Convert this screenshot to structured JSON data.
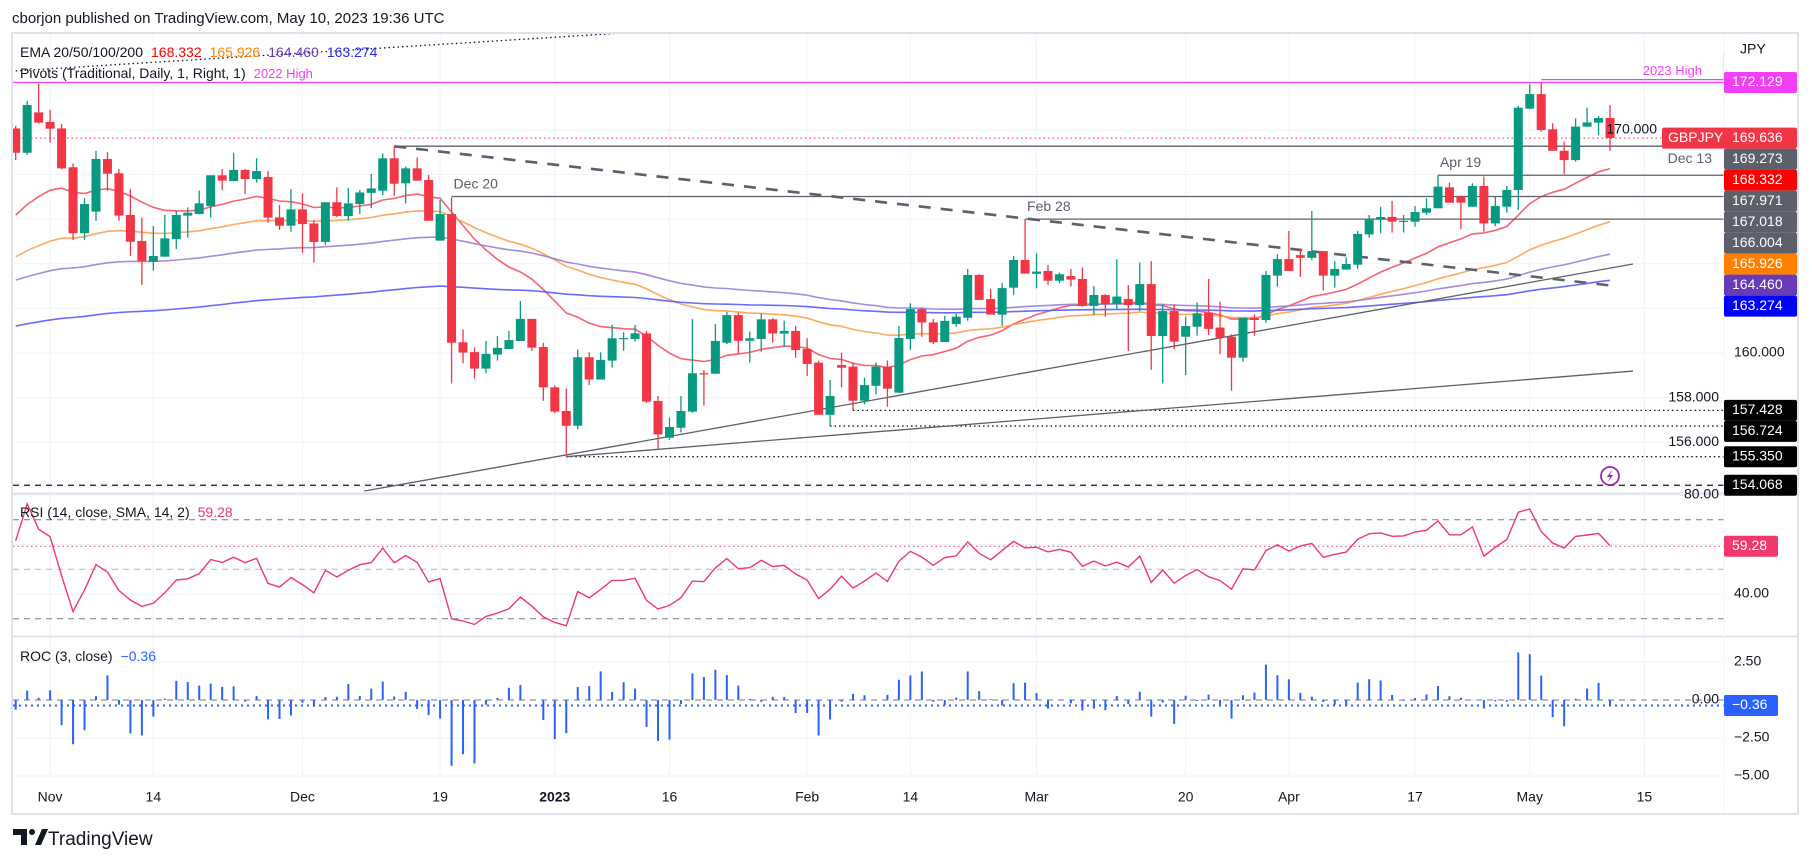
{
  "header": {
    "published": "cborjon published on TradingView.com, May 10, 2023 19:36 UTC"
  },
  "legend": {
    "ema_title": "EMA 20/50/100/200",
    "ema_values": [
      "168.332",
      "165.926",
      "164.460",
      "163.274"
    ],
    "pivots_title": "Pivots (Traditional, Daily, 1, Right, 1)",
    "pivot_2022_high": "2022 High",
    "rsi_title": "RSI (14, close, SMA, 14, 2)",
    "rsi_value": "59.28",
    "roc_title": "ROC (3, close)",
    "roc_value": "−0.36"
  },
  "colors": {
    "up": "#089981",
    "down": "#f23645",
    "ema20": "#f7525f",
    "ema50": "#ffa04d",
    "ema100": "#9c7fd6",
    "ema200": "#5b5bff",
    "ema20_label": "#ff0000",
    "ema50_label": "#ff7f00",
    "ema100_label": "#673ab7",
    "ema200_label": "#0000ff",
    "high_2023": "#f23ff7",
    "rsi": "#f0386b",
    "roc": "#2962ff",
    "level_gray": "#5d606b"
  },
  "symbol": {
    "ticker": "GBPJPY",
    "price": "169.636",
    "currency": "JPY"
  },
  "brand": "TradingView",
  "icons": {
    "alert": "lightning-icon",
    "logo": "tradingview-logo-icon"
  },
  "chart_data": {
    "type": "candlestick",
    "title": "GBPJPY Daily",
    "ylabel": "JPY",
    "ylim": [
      153.0,
      174.0
    ],
    "grid": true,
    "price_ticks": [
      {
        "value": 170,
        "label": "170.000"
      },
      {
        "value": 160,
        "label": "160.000"
      },
      {
        "value": 158,
        "label": "158.000"
      },
      {
        "value": 156,
        "label": "156.000"
      }
    ],
    "x_labels": [
      {
        "label": "Nov",
        "index": 3
      },
      {
        "label": "14",
        "index": 12
      },
      {
        "label": "Dec",
        "index": 25
      },
      {
        "label": "19",
        "index": 37
      },
      {
        "label": "2023",
        "index": 47,
        "bold": true
      },
      {
        "label": "16",
        "index": 57
      },
      {
        "label": "Feb",
        "index": 69
      },
      {
        "label": "14",
        "index": 78
      },
      {
        "label": "Mar",
        "index": 89
      },
      {
        "label": "20",
        "index": 102
      },
      {
        "label": "Apr",
        "index": 111
      },
      {
        "label": "17",
        "index": 122
      },
      {
        "label": "May",
        "index": 132
      },
      {
        "label": "15",
        "index": 142
      }
    ],
    "ohlc": [
      [
        170.07,
        170.18,
        168.65,
        168.98
      ],
      [
        168.98,
        171.3,
        168.88,
        171.12
      ],
      [
        170.79,
        172.06,
        170.3,
        170.33
      ],
      [
        170.36,
        170.9,
        169.43,
        170.06
      ],
      [
        170.07,
        170.27,
        168.25,
        168.28
      ],
      [
        168.33,
        168.5,
        165.07,
        165.37
      ],
      [
        165.37,
        166.94,
        165.07,
        166.68
      ],
      [
        166.34,
        169.06,
        165.93,
        168.7
      ],
      [
        168.7,
        169.01,
        167.28,
        168.04
      ],
      [
        168.06,
        168.25,
        165.93,
        166.16
      ],
      [
        166.19,
        167.35,
        164.36,
        164.99
      ],
      [
        165.02,
        166.07,
        163.05,
        164.12
      ],
      [
        164.09,
        165.69,
        163.69,
        164.35
      ],
      [
        164.32,
        166.19,
        164.32,
        165.14
      ],
      [
        165.11,
        166.38,
        164.66,
        166.19
      ],
      [
        166.16,
        166.53,
        165.17,
        166.29
      ],
      [
        166.23,
        167.28,
        166.23,
        166.71
      ],
      [
        166.59,
        167.97,
        166.07,
        167.97
      ],
      [
        167.97,
        168.25,
        167.31,
        167.73
      ],
      [
        167.71,
        168.98,
        167.71,
        168.21
      ],
      [
        168.21,
        168.25,
        167.13,
        167.8
      ],
      [
        167.8,
        168.74,
        167.64,
        168.16
      ],
      [
        167.89,
        168.16,
        165.84,
        166.07
      ],
      [
        166.08,
        166.64,
        165.52,
        165.71
      ],
      [
        165.71,
        167.35,
        165.44,
        166.44
      ],
      [
        166.44,
        167.16,
        164.5,
        165.78
      ],
      [
        165.81,
        165.96,
        164.05,
        164.98
      ],
      [
        164.98,
        166.76,
        164.84,
        166.76
      ],
      [
        166.76,
        167.43,
        166.1,
        166.14
      ],
      [
        166.14,
        167.4,
        165.93,
        166.71
      ],
      [
        166.68,
        167.31,
        166.23,
        167.2
      ],
      [
        167.18,
        168.03,
        166.49,
        167.38
      ],
      [
        167.28,
        168.95,
        167.08,
        168.73
      ],
      [
        168.73,
        169.27,
        167.05,
        167.59
      ],
      [
        167.61,
        168.36,
        166.71,
        168.28
      ],
      [
        168.28,
        168.77,
        167.73,
        167.73
      ],
      [
        167.76,
        167.98,
        165.93,
        165.93
      ],
      [
        165.04,
        166.86,
        165.04,
        166.23
      ],
      [
        166.23,
        166.98,
        158.64,
        160.46
      ],
      [
        160.48,
        161.06,
        159.54,
        160.02
      ],
      [
        160.04,
        160.25,
        158.85,
        159.3
      ],
      [
        159.3,
        160.54,
        159.09,
        159.96
      ],
      [
        159.93,
        160.76,
        159.66,
        160.23
      ],
      [
        160.18,
        160.99,
        160.18,
        160.58
      ],
      [
        160.54,
        162.33,
        160.54,
        161.53
      ],
      [
        161.53,
        161.53,
        160.09,
        160.24
      ],
      [
        160.27,
        160.46,
        157.86,
        158.46
      ],
      [
        158.46,
        158.55,
        157.3,
        157.37
      ],
      [
        157.4,
        158.41,
        155.35,
        156.74
      ],
      [
        156.74,
        160.16,
        156.58,
        159.81
      ],
      [
        159.81,
        160.03,
        158.56,
        158.81
      ],
      [
        158.81,
        160.03,
        158.81,
        159.69
      ],
      [
        159.66,
        161.26,
        159.34,
        160.66
      ],
      [
        160.66,
        160.93,
        160.1,
        160.67
      ],
      [
        160.63,
        161.26,
        160.51,
        160.88
      ],
      [
        160.88,
        160.99,
        157.77,
        157.82
      ],
      [
        157.85,
        158.07,
        155.72,
        156.35
      ],
      [
        156.2,
        157.11,
        156.1,
        156.68
      ],
      [
        156.65,
        158.07,
        156.44,
        157.4
      ],
      [
        157.37,
        161.52,
        157.32,
        159.09
      ],
      [
        159.09,
        159.24,
        157.64,
        159.04
      ],
      [
        159.07,
        161.3,
        159.07,
        160.54
      ],
      [
        160.46,
        161.85,
        160.4,
        161.7
      ],
      [
        161.7,
        161.81,
        159.98,
        160.55
      ],
      [
        160.55,
        160.96,
        159.57,
        160.66
      ],
      [
        160.63,
        161.78,
        160.06,
        161.51
      ],
      [
        161.51,
        161.57,
        160.46,
        160.88
      ],
      [
        160.87,
        161.45,
        160.25,
        160.99
      ],
      [
        160.99,
        161.21,
        159.79,
        160.13
      ],
      [
        160.18,
        160.66,
        158.97,
        159.51
      ],
      [
        159.57,
        159.66,
        157.23,
        157.23
      ],
      [
        157.23,
        158.79,
        156.72,
        158.07
      ],
      [
        159.46,
        160.02,
        158.46,
        159.34
      ],
      [
        159.39,
        159.57,
        157.43,
        157.86
      ],
      [
        157.86,
        158.89,
        157.7,
        158.56
      ],
      [
        158.53,
        159.57,
        158.15,
        159.39
      ],
      [
        159.39,
        159.66,
        157.59,
        158.4
      ],
      [
        158.22,
        161.21,
        158.22,
        160.67
      ],
      [
        160.63,
        162.23,
        160.13,
        161.97
      ],
      [
        161.97,
        162.05,
        160.73,
        161.37
      ],
      [
        161.37,
        161.52,
        160.4,
        160.48
      ],
      [
        160.49,
        161.66,
        160.49,
        161.44
      ],
      [
        161.3,
        161.75,
        161.18,
        161.63
      ],
      [
        161.58,
        163.77,
        161.45,
        163.5
      ],
      [
        163.5,
        163.54,
        162.38,
        162.38
      ],
      [
        162.42,
        162.87,
        161.72,
        161.72
      ],
      [
        161.72,
        163.15,
        161.21,
        162.91
      ],
      [
        162.93,
        164.35,
        162.6,
        164.17
      ],
      [
        164.17,
        166.0,
        163.56,
        163.56
      ],
      [
        163.55,
        164.47,
        162.9,
        163.65
      ],
      [
        163.68,
        163.95,
        163.05,
        163.24
      ],
      [
        163.24,
        163.6,
        163.12,
        163.53
      ],
      [
        163.45,
        163.77,
        162.98,
        163.29
      ],
      [
        163.32,
        163.84,
        162.08,
        162.11
      ],
      [
        162.11,
        163.0,
        161.7,
        162.6
      ],
      [
        162.6,
        162.64,
        161.63,
        162.2
      ],
      [
        162.2,
        164.21,
        161.96,
        162.53
      ],
      [
        162.42,
        163.05,
        160.09,
        162.15
      ],
      [
        162.15,
        164.06,
        161.88,
        163.09
      ],
      [
        163.09,
        164.12,
        159.24,
        160.76
      ],
      [
        160.76,
        162.18,
        158.64,
        161.88
      ],
      [
        161.88,
        162.18,
        160.17,
        160.51
      ],
      [
        160.73,
        161.63,
        159.01,
        161.21
      ],
      [
        161.18,
        162.27,
        160.78,
        161.78
      ],
      [
        161.81,
        163.32,
        160.81,
        161.08
      ],
      [
        161.14,
        162.3,
        159.95,
        160.69
      ],
      [
        160.73,
        160.84,
        158.31,
        159.79
      ],
      [
        159.79,
        161.58,
        159.61,
        161.58
      ],
      [
        161.58,
        161.73,
        160.78,
        161.48
      ],
      [
        161.48,
        163.68,
        161.36,
        163.5
      ],
      [
        163.47,
        164.44,
        162.97,
        164.21
      ],
      [
        164.21,
        165.47,
        163.68,
        163.68
      ],
      [
        164.39,
        164.69,
        163.42,
        164.27
      ],
      [
        164.27,
        166.37,
        164.17,
        164.57
      ],
      [
        164.57,
        164.57,
        162.8,
        163.47
      ],
      [
        163.47,
        164.12,
        162.93,
        163.77
      ],
      [
        163.74,
        164.29,
        163.74,
        163.99
      ],
      [
        163.96,
        165.47,
        163.77,
        165.34
      ],
      [
        165.32,
        166.19,
        165.17,
        166.01
      ],
      [
        165.98,
        166.55,
        165.37,
        166.1
      ],
      [
        166.1,
        166.82,
        165.4,
        165.89
      ],
      [
        165.89,
        166.19,
        165.4,
        165.93
      ],
      [
        165.89,
        166.59,
        165.67,
        166.32
      ],
      [
        166.29,
        166.94,
        166.19,
        166.49
      ],
      [
        166.49,
        167.97,
        166.49,
        167.46
      ],
      [
        167.43,
        167.64,
        166.74,
        166.74
      ],
      [
        167.01,
        167.05,
        165.55,
        166.74
      ],
      [
        166.56,
        167.61,
        166.56,
        167.49
      ],
      [
        167.49,
        167.91,
        165.44,
        165.81
      ],
      [
        165.81,
        167.01,
        165.69,
        166.59
      ],
      [
        166.56,
        167.49,
        166.29,
        167.31
      ],
      [
        167.31,
        171.08,
        166.41,
        171.0
      ],
      [
        170.96,
        172.05,
        170.93,
        171.61
      ],
      [
        171.61,
        172.13,
        169.93,
        170.0
      ],
      [
        170.03,
        170.3,
        169.07,
        169.07
      ],
      [
        169.07,
        169.48,
        168.03,
        168.65
      ],
      [
        168.65,
        170.52,
        168.58,
        170.15
      ],
      [
        170.15,
        171.0,
        170.15,
        170.34
      ],
      [
        170.33,
        170.63,
        169.77,
        170.54
      ],
      [
        170.54,
        171.12,
        169.07,
        169.64
      ]
    ],
    "ema": [
      {
        "name": "EMA 20",
        "period": 20,
        "start": 166.19,
        "last": 168.332,
        "color_key": "ema20"
      },
      {
        "name": "EMA 50",
        "period": 50,
        "start": 164.32,
        "last": 165.926,
        "color_key": "ema50"
      },
      {
        "name": "EMA 100",
        "period": 100,
        "start": 163.27,
        "last": 164.46,
        "color_key": "ema100"
      },
      {
        "name": "EMA 200",
        "period": 200,
        "start": 161.21,
        "last": 163.274,
        "color_key": "ema200"
      }
    ],
    "levels": [
      {
        "name": "2023 High",
        "price": 172.129,
        "label": "172.129",
        "style": "solid",
        "color_key": "high_2023",
        "from_index": 0,
        "text": "2023 High"
      },
      {
        "name": "Dec 13",
        "price": 169.273,
        "label": "169.273",
        "style": "solid",
        "color_key": "level_gray",
        "from_index": 33,
        "text": "Dec 13"
      },
      {
        "name": "Apr 19",
        "price": 167.971,
        "label": "167.971",
        "style": "solid",
        "color_key": "level_gray",
        "from_index": 124,
        "text": "Apr 19"
      },
      {
        "name": "Dec 20",
        "price": 167.018,
        "label": "167.018",
        "style": "solid",
        "color_key": "level_gray",
        "from_index": 38,
        "text": "Dec 20"
      },
      {
        "name": "Feb 28",
        "price": 166.004,
        "label": "166.004",
        "style": "solid",
        "color_key": "level_gray",
        "from_index": 88,
        "text": "Feb 28"
      },
      {
        "name": "pivot-157",
        "price": 157.428,
        "label": "157.428",
        "style": "dotted",
        "from_index": 73
      },
      {
        "name": "pivot-156",
        "price": 156.724,
        "label": "156.724",
        "style": "dotted",
        "from_index": 71
      },
      {
        "name": "pivot-155",
        "price": 155.35,
        "label": "155.350",
        "style": "dotted",
        "from_index": 48
      },
      {
        "name": "pivot-154",
        "price": 154.068,
        "label": "154.068",
        "style": "dashed",
        "from_index": 0
      }
    ],
    "trendlines": [
      {
        "name": "downtrend-dashed",
        "from": [
          33,
          169.27
        ],
        "to": [
          139.5,
          163.0
        ],
        "style": "dashed"
      },
      {
        "name": "uptrend-upper",
        "from": [
          30.4,
          153.81
        ],
        "to": [
          141,
          163.99
        ],
        "style": "solid"
      },
      {
        "name": "uptrend-lower",
        "from": [
          48,
          155.35
        ],
        "to": [
          141,
          159.19
        ],
        "style": "solid"
      },
      {
        "name": "pivot-dotted-top",
        "from": [
          0,
          172.65
        ],
        "to": [
          57,
          174.48
        ],
        "style": "dotted"
      }
    ],
    "rsi": {
      "period": 14,
      "last": 59.28,
      "levels": [
        70,
        50,
        30
      ],
      "ticks": [
        {
          "value": 80,
          "label": "80.00"
        },
        {
          "value": 40,
          "label": "40.00"
        }
      ]
    },
    "roc": {
      "period": 3,
      "last": -0.36,
      "ticks": [
        {
          "value": 2.5,
          "label": "2.50"
        },
        {
          "value": 0,
          "label": "0.00"
        },
        {
          "value": -2.5,
          "label": "−2.50"
        },
        {
          "value": -5,
          "label": "−5.00"
        }
      ]
    }
  }
}
